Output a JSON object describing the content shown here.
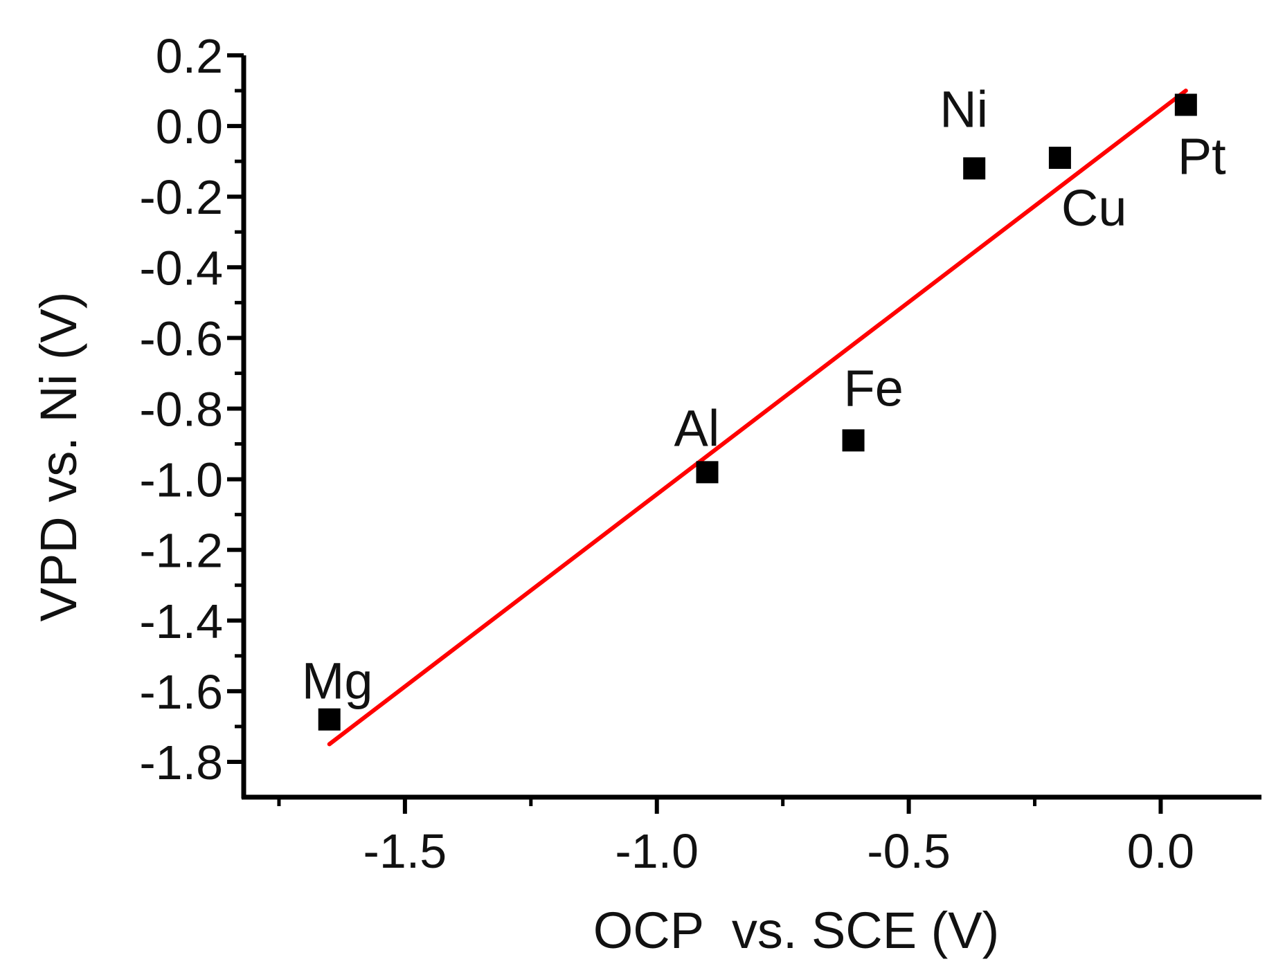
{
  "chart_data": {
    "type": "scatter",
    "title": "",
    "xlabel": "OCP  vs. SCE (V)",
    "ylabel": "VPD vs. Ni (V)",
    "xlim": [
      -1.82,
      0.2
    ],
    "ylim": [
      -1.9,
      0.2
    ],
    "x_major_ticks": [
      -1.5,
      -1.0,
      -0.5,
      0.0
    ],
    "x_tick_labels": [
      "-1.5",
      "-1.0",
      "-0.5",
      "0.0"
    ],
    "x_minor_ticks": [
      -1.75,
      -1.25,
      -0.75,
      -0.25
    ],
    "y_major_ticks": [
      0.2,
      0.0,
      -0.2,
      -0.4,
      -0.6,
      -0.8,
      -1.0,
      -1.2,
      -1.4,
      -1.6,
      -1.8
    ],
    "y_tick_labels": [
      "0.2",
      "0.0",
      "-0.2",
      "-0.4",
      "-0.6",
      "-0.8",
      "-1.0",
      "-1.2",
      "-1.4",
      "-1.6",
      "-1.8"
    ],
    "y_minor_ticks": [
      0.1,
      -0.1,
      -0.3,
      -0.5,
      -0.7,
      -0.9,
      -1.1,
      -1.3,
      -1.5,
      -1.7
    ],
    "series": [
      {
        "name": "metals",
        "marker": "square",
        "color": "#000000",
        "points": [
          {
            "label": "Mg",
            "x": -1.65,
            "y": -1.68
          },
          {
            "label": "Al",
            "x": -0.9,
            "y": -0.98
          },
          {
            "label": "Fe",
            "x": -0.61,
            "y": -0.89
          },
          {
            "label": "Ni",
            "x": -0.37,
            "y": -0.12
          },
          {
            "label": "Cu",
            "x": -0.2,
            "y": -0.09
          },
          {
            "label": "Pt",
            "x": 0.05,
            "y": 0.06
          }
        ]
      },
      {
        "name": "linear fit",
        "type": "line",
        "color": "#ff0000",
        "x": [
          -1.65,
          0.05
        ],
        "y": [
          -1.75,
          0.1
        ]
      }
    ],
    "grid": false,
    "legend": "none"
  }
}
